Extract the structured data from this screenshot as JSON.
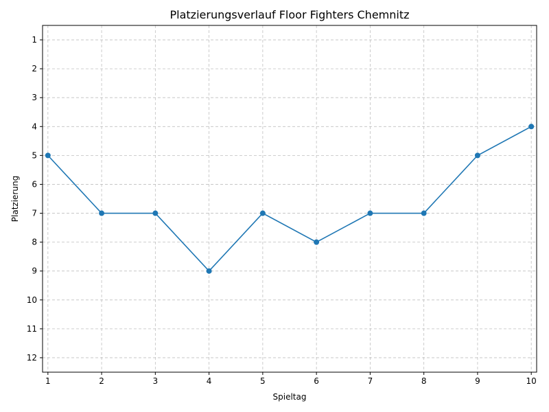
{
  "chart_data": {
    "type": "line",
    "title": "Platzierungsverlauf Floor Fighters Chemnitz",
    "xlabel": "Spieltag",
    "ylabel": "Platzierung",
    "x": [
      1,
      2,
      3,
      4,
      5,
      6,
      7,
      8,
      9,
      10
    ],
    "series": [
      {
        "values": [
          5,
          7,
          7,
          9,
          7,
          8,
          7,
          7,
          5,
          4
        ],
        "color": "#1f77b4",
        "marker": "circle"
      }
    ],
    "xlim": [
      0.9,
      10.1
    ],
    "ylim": [
      12.5,
      0.5
    ],
    "y_inverted": true,
    "xticks": [
      1,
      2,
      3,
      4,
      5,
      6,
      7,
      8,
      9,
      10
    ],
    "yticks": [
      1,
      2,
      3,
      4,
      5,
      6,
      7,
      8,
      9,
      10,
      11,
      12
    ],
    "grid": true
  }
}
